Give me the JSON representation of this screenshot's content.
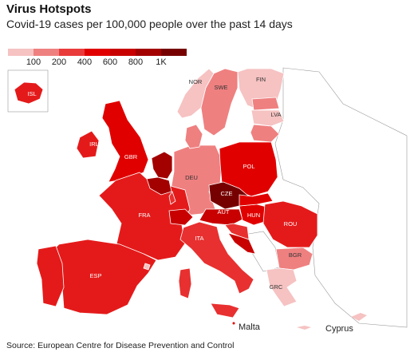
{
  "header": {
    "title": "Virus Hotspots",
    "subtitle": "Covid-19 cases per 100,000 people over the past 14 days"
  },
  "legend": {
    "colors": [
      "#f6c2c2",
      "#ef8080",
      "#ea3b3b",
      "#e10000",
      "#c80000",
      "#a30000",
      "#760000"
    ],
    "labels": [
      "100",
      "200",
      "400",
      "600",
      "800",
      "1K"
    ]
  },
  "regions": [
    {
      "label": "ISL",
      "color": "#e41a1a"
    },
    {
      "label": "NOR",
      "color": "#f6c2c2"
    },
    {
      "label": "SWE",
      "color": "#ef8080"
    },
    {
      "label": "FIN",
      "color": "#f6c2c2"
    },
    {
      "label": "LVA",
      "color": "#f6c2c2"
    },
    {
      "label": "IRL",
      "color": "#e41a1a"
    },
    {
      "label": "GBR",
      "color": "#e10000"
    },
    {
      "label": "DEU",
      "color": "#ef8080"
    },
    {
      "label": "POL",
      "color": "#e10000"
    },
    {
      "label": "CZE",
      "color": "#760000"
    },
    {
      "label": "FRA",
      "color": "#e41a1a"
    },
    {
      "label": "AUT",
      "color": "#c80000"
    },
    {
      "label": "HUN",
      "color": "#e10000"
    },
    {
      "label": "ROU",
      "color": "#e41a1a"
    },
    {
      "label": "ESP",
      "color": "#e41a1a"
    },
    {
      "label": "ITA",
      "color": "#e83030"
    },
    {
      "label": "BGR",
      "color": "#ef8080"
    },
    {
      "label": "GRC",
      "color": "#f6c2c2"
    },
    {
      "color": "#a30000"
    },
    {
      "color": "#a30000"
    },
    {
      "color": "#ef8080"
    },
    {
      "color": "#e41a1a"
    },
    {
      "color": "#ef8080"
    },
    {
      "color": "#ef8080"
    },
    {
      "color": "#e10000"
    },
    {
      "color": "#c80000"
    },
    {
      "color": "#e83030"
    },
    {
      "color": "#c80000"
    },
    {
      "color": "#e83030"
    },
    {
      "color": "#e83030"
    },
    {
      "color": "#e83030"
    },
    {
      "color": "#f6c2c2"
    }
  ],
  "places": {
    "malta": "Malta",
    "cyprus": "Cyprus"
  },
  "source": "Source: European Centre for Disease Prevention and Control"
}
